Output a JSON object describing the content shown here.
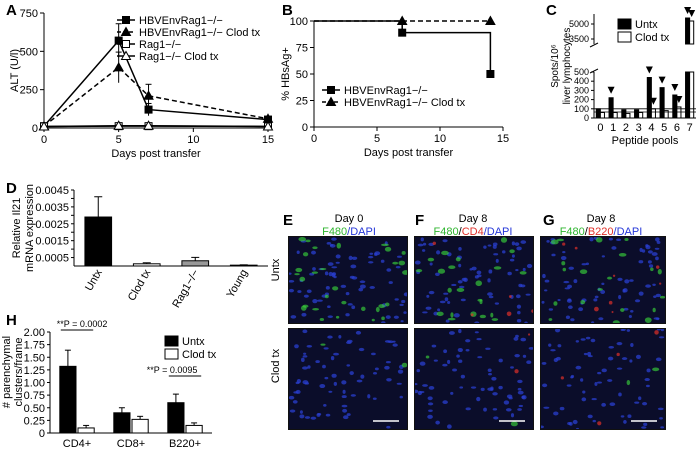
{
  "panels": {
    "A": "A",
    "B": "B",
    "C": "C",
    "D": "D",
    "E": "E",
    "F": "F",
    "G": "G",
    "H": "H"
  },
  "colors": {
    "black": "#000000",
    "white": "#ffffff",
    "gray": "#999999",
    "green": "#39d33a",
    "red": "#e0302a",
    "blue": "#2436d8",
    "tissue_bg": "#0b0d2a"
  },
  "chart_data": [
    {
      "id": "A",
      "type": "line",
      "xlabel": "Days post transfer",
      "ylabel": "ALT (U/l)",
      "xlim": [
        0,
        15
      ],
      "ylim": [
        0,
        750
      ],
      "xticks": [
        0,
        5,
        10,
        15
      ],
      "yticks": [
        0,
        250,
        500,
        750
      ],
      "x": [
        0,
        5,
        7,
        15
      ],
      "series": [
        {
          "name": "HBVEnvRag1−/−",
          "marker": "square-filled",
          "dash": false,
          "values": [
            12,
            570,
            120,
            55
          ],
          "err": [
            5,
            110,
            40,
            8
          ]
        },
        {
          "name": "HBVEnvRag1−/− Clod tx",
          "marker": "triangle-filled",
          "dash": true,
          "values": [
            12,
            395,
            210,
            60
          ],
          "err": [
            5,
            100,
            75,
            8
          ]
        },
        {
          "name": "Rag1−/−",
          "marker": "square-open",
          "dash": false,
          "values": [
            10,
            12,
            12,
            10
          ],
          "err": [
            2,
            4,
            3,
            2
          ]
        },
        {
          "name": "Rag1−/− Clod tx",
          "marker": "triangle-open",
          "dash": false,
          "values": [
            10,
            15,
            15,
            10
          ],
          "err": [
            2,
            4,
            3,
            2
          ]
        }
      ],
      "legend_placement": "top-right"
    },
    {
      "id": "B",
      "type": "line",
      "xlabel": "Days post transfer",
      "ylabel": "% HBsAg+",
      "xlim": [
        0,
        15
      ],
      "ylim": [
        0,
        100
      ],
      "xticks": [
        0,
        5,
        10,
        15
      ],
      "yticks": [
        0,
        25,
        50,
        75,
        100
      ],
      "series": [
        {
          "name": "HBVEnvRag1−/−",
          "marker": "square-filled",
          "dash": false,
          "step": true,
          "x": [
            0,
            7,
            14
          ],
          "values": [
            100,
            89,
            50
          ]
        },
        {
          "name": "HBVEnvRag1−/− Clod tx",
          "marker": "triangle-filled",
          "dash": true,
          "step": true,
          "x": [
            0,
            7,
            14
          ],
          "values": [
            100,
            100,
            100
          ]
        }
      ],
      "legend_placement": "bottom-center"
    },
    {
      "id": "C",
      "type": "bar",
      "xlabel": "Peptide pools",
      "ylabel": "Spots/10⁶ liver lymphocytes",
      "categories": [
        "0",
        "1",
        "2",
        "3",
        "4",
        "5",
        "6",
        "7"
      ],
      "yticks_lower": [
        0,
        100,
        200,
        300,
        400,
        500
      ],
      "yticks_upper": [
        3500,
        5000
      ],
      "broken_axis": true,
      "series": [
        {
          "name": "Untx",
          "values": [
            100,
            220,
            90,
            90,
            440,
            330,
            250,
            5600
          ]
        },
        {
          "name": "Clod tx",
          "values": [
            60,
            60,
            50,
            60,
            100,
            80,
            120,
            5300
          ]
        }
      ],
      "threshold_lines": [
        65,
        100
      ],
      "arrows": [
        "1u",
        "4u",
        "4c",
        "5u",
        "6u",
        "6c",
        "7u",
        "7c"
      ],
      "legend_placement": "top-right"
    },
    {
      "id": "D",
      "type": "bar",
      "ylabel": "Relative Il21 mRNA expression",
      "categories": [
        "Untx",
        "Clod tx",
        "Rag1−/−",
        "Young"
      ],
      "values": [
        0.0029,
        0.00013,
        0.00031,
        5e-05
      ],
      "err": [
        0.0012,
        6e-05,
        0.0002,
        2e-05
      ],
      "fills": [
        "#000000",
        "#ffffff",
        "#999999",
        "#ffffff"
      ],
      "ylim": [
        0,
        0.0045
      ],
      "yticks": [
        "0.0005",
        "0.0010",
        "0.0015",
        "0.0020",
        "0.0025",
        "0.0030",
        "0.0035",
        "0.0040",
        "0.0045"
      ]
    },
    {
      "id": "H",
      "type": "bar",
      "ylabel": "# parenchymal clusters/frame",
      "categories": [
        "CD4+",
        "CD8+",
        "B220+"
      ],
      "ylim": [
        0,
        2.0
      ],
      "yticks": [
        "0",
        "0.25",
        "0.50",
        "0.75",
        "1.00",
        "1.25",
        "1.50",
        "1.75",
        "2.00"
      ],
      "series": [
        {
          "name": "Untx",
          "values": [
            1.32,
            0.4,
            0.6
          ],
          "err": [
            0.32,
            0.1,
            0.17
          ]
        },
        {
          "name": "Clod tx",
          "values": [
            0.1,
            0.27,
            0.15
          ],
          "err": [
            0.05,
            0.06,
            0.05
          ]
        }
      ],
      "annotations": [
        {
          "text": "**P = 0.0002",
          "between": [
            "CD4+",
            "CD4+"
          ]
        },
        {
          "text": "**P = 0.0095",
          "between": [
            "B220+",
            "B220+"
          ]
        }
      ],
      "legend_placement": "top-right"
    }
  ],
  "micrographs": {
    "columns": [
      {
        "panel": "E",
        "day": "Day 0",
        "stain": [
          {
            "text": "F480",
            "color": "green"
          },
          {
            "text": "/DAPI",
            "color": "blue"
          }
        ]
      },
      {
        "panel": "F",
        "day": "Day 8",
        "stain": [
          {
            "text": "F480",
            "color": "green"
          },
          {
            "text": "/",
            "color": "black"
          },
          {
            "text": "CD4",
            "color": "red"
          },
          {
            "text": "/DAPI",
            "color": "blue"
          }
        ]
      },
      {
        "panel": "G",
        "day": "Day 8",
        "stain": [
          {
            "text": "F480",
            "color": "green"
          },
          {
            "text": "/",
            "color": "black"
          },
          {
            "text": "B220",
            "color": "red"
          },
          {
            "text": "/DAPI",
            "color": "blue"
          }
        ]
      }
    ],
    "rows": [
      "Untx",
      "Clod tx"
    ]
  }
}
